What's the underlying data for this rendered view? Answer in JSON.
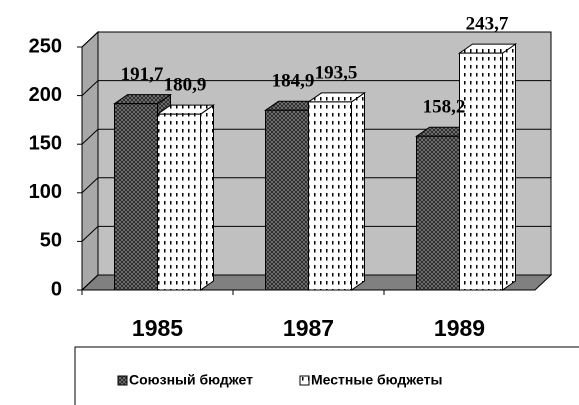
{
  "chart_data": {
    "type": "bar3d",
    "categories": [
      "1985",
      "1987",
      "1989"
    ],
    "series": [
      {
        "name": "Союзный бюджет",
        "color": "#7a7a7a",
        "values": [
          191.7,
          184.9,
          158.2
        ],
        "value_labels": [
          "191,7",
          "184,9",
          "158,2"
        ]
      },
      {
        "name": "Местные бюджеты",
        "color": "#ffffff",
        "values": [
          180.9,
          193.5,
          243.7
        ],
        "value_labels": [
          "180,9",
          "193,5",
          "243,7"
        ]
      }
    ],
    "ylim": [
      0,
      250
    ],
    "yticks": [
      0,
      50,
      100,
      150,
      200,
      250
    ],
    "grid": true,
    "legend": "bottom"
  }
}
